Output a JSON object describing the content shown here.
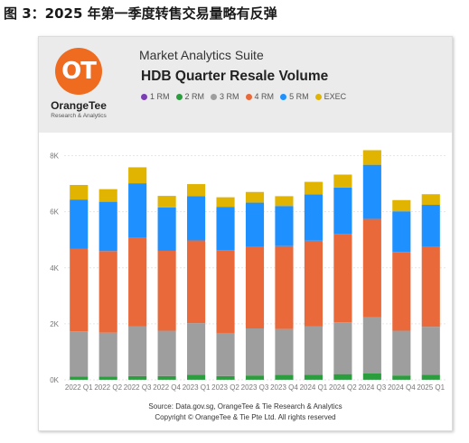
{
  "figure_title": "图 3：2025 年第一季度转售交易量略有反弹",
  "logo": {
    "mark": "OT",
    "name": "OrangeTee",
    "tagline": "Research & Analytics"
  },
  "header": {
    "suite_name": "Market Analytics Suite"
  },
  "chart_data": {
    "type": "bar",
    "stacked": true,
    "title": "HDB Quarter Resale Volume",
    "categories": [
      "2022 Q1",
      "2022 Q2",
      "2022 Q3",
      "2022 Q4",
      "2023 Q1",
      "2023 Q2",
      "2023 Q3",
      "2023 Q4",
      "2024 Q1",
      "2024 Q2",
      "2024 Q3",
      "2024 Q4",
      "2025 Q1"
    ],
    "series": [
      {
        "name": "1 RM",
        "color": "#7b3fb5",
        "values": [
          5,
          5,
          5,
          5,
          5,
          5,
          5,
          5,
          5,
          5,
          5,
          5,
          5
        ]
      },
      {
        "name": "2 RM",
        "color": "#2a9d3c",
        "values": [
          110,
          110,
          130,
          130,
          180,
          130,
          150,
          170,
          180,
          200,
          220,
          150,
          180
        ]
      },
      {
        "name": "3 RM",
        "color": "#9e9e9e",
        "values": [
          1620,
          1570,
          1780,
          1620,
          1840,
          1540,
          1680,
          1640,
          1730,
          1850,
          2010,
          1600,
          1710
        ]
      },
      {
        "name": "4 RM",
        "color": "#e9693a",
        "values": [
          2950,
          2910,
          3150,
          2850,
          2950,
          2950,
          2930,
          2960,
          3050,
          3150,
          3510,
          2810,
          2850
        ]
      },
      {
        "name": "5 RM",
        "color": "#1e90ff",
        "values": [
          1750,
          1760,
          1950,
          1550,
          1580,
          1550,
          1560,
          1430,
          1650,
          1660,
          1930,
          1450,
          1500
        ]
      },
      {
        "name": "EXEC",
        "color": "#e0b400",
        "values": [
          520,
          450,
          570,
          410,
          430,
          340,
          380,
          350,
          450,
          460,
          520,
          400,
          380
        ]
      }
    ],
    "ylim": [
      0,
      8500
    ],
    "yticks": [
      0,
      2000,
      4000,
      6000,
      8000
    ],
    "ytick_labels": [
      "0K",
      "2K",
      "4K",
      "6K",
      "8K"
    ],
    "grid": true,
    "legend_position": "top"
  },
  "footer": {
    "source": "Source: Data.gov.sg, OrangeTee & Tie Research & Analytics",
    "copyright": "Copyright © OrangeTee & Tie Pte Ltd. All rights reserved"
  }
}
